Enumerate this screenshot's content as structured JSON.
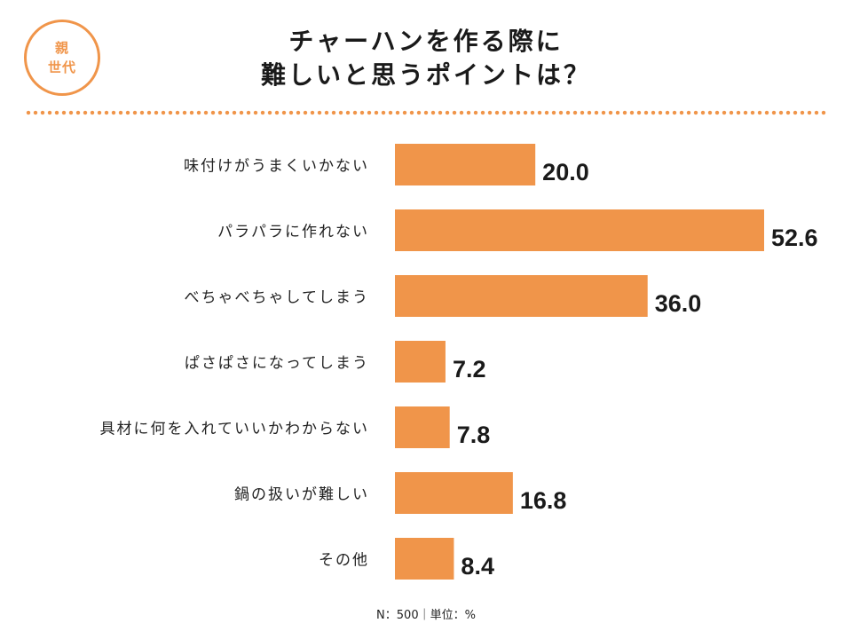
{
  "badge": {
    "line1": "親",
    "line2": "世代"
  },
  "title": {
    "line1": "チャーハンを作る際に",
    "line2": "難しいと思うポイントは？"
  },
  "footnote": "N：500｜単位：%",
  "colors": {
    "accent": "#f0954a",
    "bar": "#f0954a",
    "text": "#222222"
  },
  "chart_data": {
    "type": "bar",
    "orientation": "horizontal",
    "categories": [
      "味付けがうまくいかない",
      "パラパラに作れない",
      "べちゃべちゃしてしまう",
      "ぱさぱさになってしまう",
      "具材に何を入れていいかわからない",
      "鍋の扱いが難しい",
      "その他"
    ],
    "values": [
      20.0,
      52.6,
      36.0,
      7.2,
      7.8,
      16.8,
      8.4
    ],
    "value_labels": [
      "20.0",
      "52.6",
      "36.0",
      "7.2",
      "7.8",
      "16.8",
      "8.4"
    ],
    "xlim": [
      0,
      52.6
    ],
    "grid": false,
    "legend": false
  }
}
